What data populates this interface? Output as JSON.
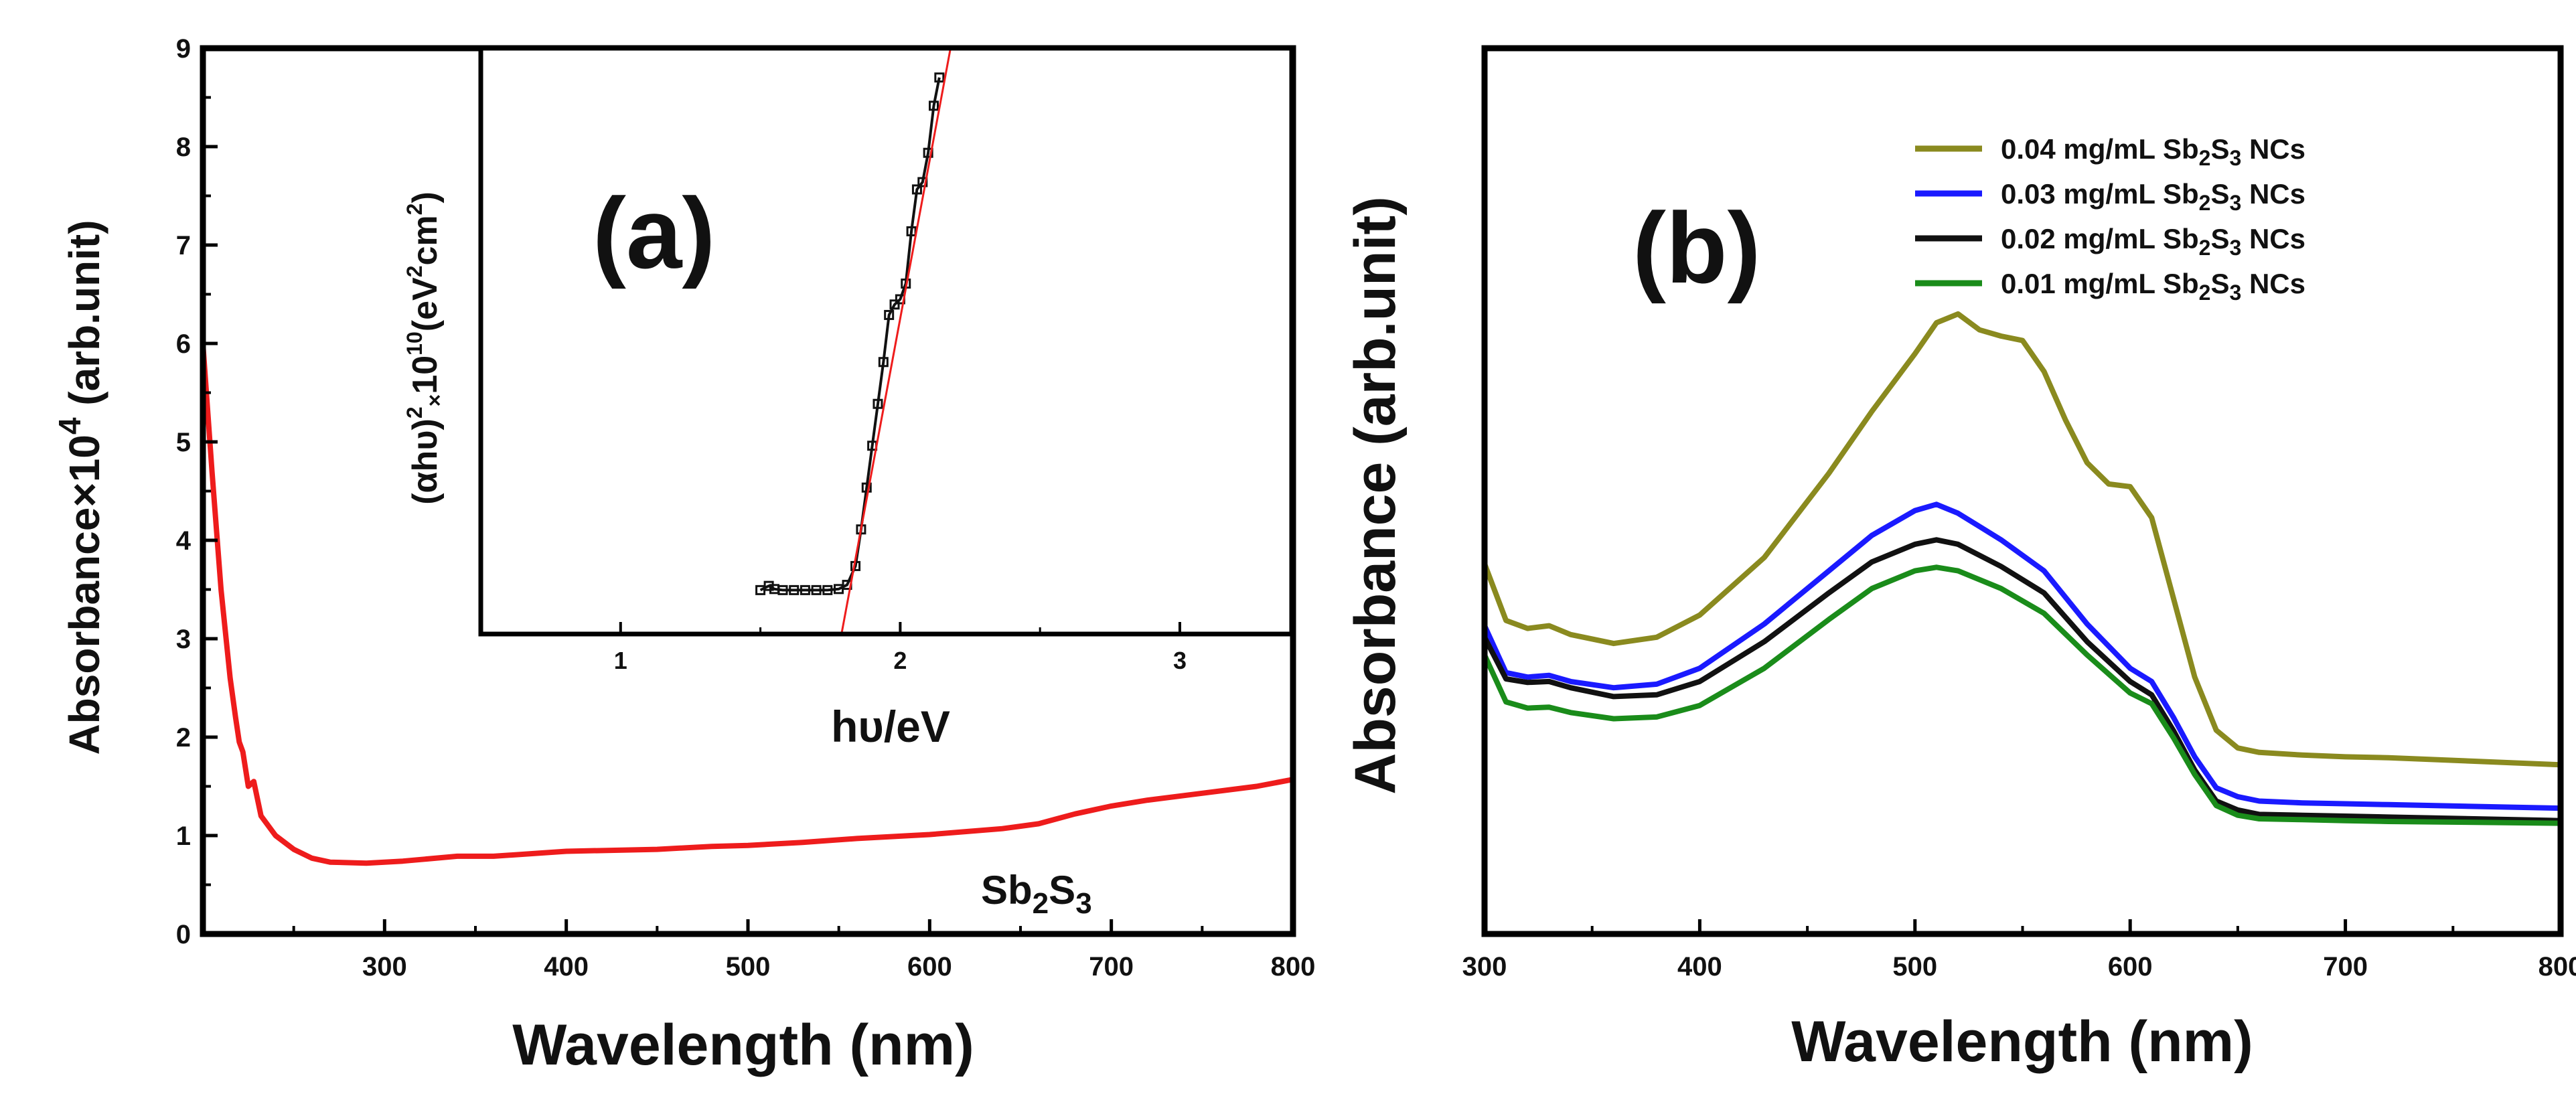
{
  "chart_data": [
    {
      "type": "line",
      "panel": "(a)",
      "title": "",
      "xlabel": "Wavelength (nm)",
      "ylabel": "Absorbance×10^4 (arb.unit)",
      "ylabel_main": "Absorbance×10",
      "ylabel_exp": "4",
      "ylabel_unit": " (arb.unit)",
      "xlim": [
        200,
        800
      ],
      "ylim": [
        0,
        9
      ],
      "xticks": [
        300,
        400,
        500,
        600,
        700,
        800
      ],
      "yticks": [
        0,
        1,
        2,
        3,
        4,
        5,
        6,
        7,
        8,
        9
      ],
      "annotation": {
        "main": "Sb",
        "s1": "2",
        "mid": "S",
        "s2": "3"
      },
      "series": [
        {
          "name": "Sb2S3",
          "color": "#ee1c1c",
          "x": [
            200,
            205,
            210,
            215,
            218,
            220,
            222,
            225,
            228,
            232,
            240,
            250,
            260,
            270,
            290,
            310,
            340,
            360,
            400,
            450,
            480,
            500,
            530,
            560,
            600,
            640,
            660,
            670,
            680,
            690,
            700,
            720,
            750,
            780,
            800
          ],
          "y": [
            6.0,
            4.7,
            3.5,
            2.6,
            2.2,
            1.95,
            1.85,
            1.5,
            1.55,
            1.2,
            1.0,
            0.86,
            0.77,
            0.73,
            0.72,
            0.74,
            0.79,
            0.79,
            0.84,
            0.86,
            0.89,
            0.9,
            0.93,
            0.97,
            1.01,
            1.07,
            1.12,
            1.17,
            1.22,
            1.26,
            1.3,
            1.36,
            1.43,
            1.5,
            1.57
          ]
        }
      ],
      "inset": {
        "xlabel": "hυ/eV",
        "ylabel": "(αhυ)²×10¹⁰(eV²cm²)",
        "ylabel_left": "(αhυ)",
        "ylabel_sup": "2",
        "ylabel_sub": "×",
        "ylabel_mid": "10",
        "ylabel_sup2": "10",
        "ylabel_unit": "(eV",
        "ylabel_sup3": "2",
        "ylabel_cm": "cm",
        "ylabel_sup4": "2",
        "ylabel_close": ")",
        "xlim": [
          0.5,
          3.4
        ],
        "ylim": [
          3.4,
          9.0
        ],
        "xticks": [
          1,
          2,
          3
        ],
        "data": {
          "name": "measured",
          "color": "#111111",
          "x": [
            1.5,
            1.53,
            1.55,
            1.58,
            1.62,
            1.66,
            1.7,
            1.74,
            1.78,
            1.81,
            1.84,
            1.86,
            1.88,
            1.9,
            1.92,
            1.94,
            1.96,
            1.98,
            2.0,
            2.02,
            2.04,
            2.06,
            2.08,
            2.1,
            2.12,
            2.14
          ],
          "y": [
            3.82,
            3.86,
            3.83,
            3.82,
            3.82,
            3.82,
            3.82,
            3.82,
            3.83,
            3.87,
            4.05,
            4.4,
            4.8,
            5.2,
            5.6,
            6.0,
            6.45,
            6.55,
            6.6,
            6.75,
            7.25,
            7.65,
            7.72,
            8.0,
            8.45,
            8.72
          ]
        },
        "fit": {
          "name": "linear fit",
          "color": "#ee1c1c",
          "x": [
            1.79,
            2.18
          ],
          "y": [
            3.4,
            9.0
          ]
        }
      }
    },
    {
      "type": "line",
      "panel": "(b)",
      "title": "",
      "xlabel": "Wavelength (nm)",
      "ylabel": "Absorbance (arb.unit)",
      "xlim": [
        300,
        800
      ],
      "ylim": [
        0,
        1
      ],
      "xticks": [
        300,
        400,
        500,
        600,
        700,
        800
      ],
      "legend": "top-right",
      "series": [
        {
          "name": "0.04 mg/mL Sb2S3 NCs",
          "color": "#8a8a1f",
          "label": {
            "pre": "0.04 mg/mL Sb",
            "s1": "2",
            "mid": "S",
            "s2": "3",
            "post": " NCs"
          },
          "x": [
            300,
            310,
            320,
            330,
            340,
            360,
            380,
            400,
            430,
            460,
            480,
            500,
            510,
            520,
            530,
            540,
            550,
            560,
            570,
            580,
            590,
            600,
            610,
            620,
            630,
            640,
            650,
            660,
            680,
            700,
            720,
            760,
            800
          ],
          "y": [
            0.418,
            0.354,
            0.345,
            0.348,
            0.338,
            0.328,
            0.335,
            0.36,
            0.425,
            0.52,
            0.59,
            0.655,
            0.69,
            0.7,
            0.682,
            0.675,
            0.67,
            0.635,
            0.58,
            0.532,
            0.508,
            0.505,
            0.47,
            0.38,
            0.29,
            0.23,
            0.21,
            0.205,
            0.202,
            0.2,
            0.199,
            0.195,
            0.191
          ]
        },
        {
          "name": "0.03 mg/mL Sb2S3 NCs",
          "color": "#1a1aff",
          "label": {
            "pre": "0.03 mg/mL Sb",
            "s1": "2",
            "mid": "S",
            "s2": "3",
            "post": " NCs"
          },
          "x": [
            300,
            310,
            320,
            330,
            340,
            360,
            380,
            400,
            430,
            460,
            480,
            500,
            510,
            520,
            530,
            540,
            560,
            580,
            600,
            610,
            620,
            630,
            640,
            650,
            660,
            680,
            700,
            720,
            760,
            800
          ],
          "y": [
            0.348,
            0.295,
            0.29,
            0.292,
            0.285,
            0.278,
            0.282,
            0.3,
            0.35,
            0.41,
            0.45,
            0.478,
            0.485,
            0.475,
            0.46,
            0.445,
            0.41,
            0.35,
            0.3,
            0.285,
            0.245,
            0.2,
            0.165,
            0.155,
            0.15,
            0.148,
            0.147,
            0.146,
            0.144,
            0.142
          ]
        },
        {
          "name": "0.02 mg/mL Sb2S3 NCs",
          "color": "#111111",
          "label": {
            "pre": "0.02 mg/mL Sb",
            "s1": "2",
            "mid": "S",
            "s2": "3",
            "post": " NCs"
          },
          "x": [
            300,
            310,
            320,
            330,
            340,
            360,
            380,
            400,
            430,
            460,
            480,
            500,
            510,
            520,
            540,
            560,
            580,
            600,
            610,
            620,
            630,
            640,
            650,
            660,
            680,
            700,
            720,
            760,
            800
          ],
          "y": [
            0.335,
            0.288,
            0.284,
            0.285,
            0.278,
            0.268,
            0.27,
            0.285,
            0.33,
            0.385,
            0.42,
            0.44,
            0.445,
            0.44,
            0.415,
            0.385,
            0.33,
            0.285,
            0.27,
            0.23,
            0.185,
            0.15,
            0.14,
            0.135,
            0.134,
            0.133,
            0.132,
            0.13,
            0.128
          ]
        },
        {
          "name": "0.01 mg/mL Sb2S3 NCs",
          "color": "#1a8c1a",
          "label": {
            "pre": "0.01 mg/mL Sb",
            "s1": "2",
            "mid": "S",
            "s2": "3",
            "post": " NCs"
          },
          "x": [
            300,
            310,
            320,
            330,
            340,
            360,
            380,
            400,
            430,
            460,
            480,
            500,
            510,
            520,
            540,
            560,
            580,
            600,
            610,
            620,
            630,
            640,
            650,
            660,
            680,
            700,
            720,
            760,
            800
          ],
          "y": [
            0.315,
            0.262,
            0.255,
            0.256,
            0.25,
            0.243,
            0.245,
            0.258,
            0.3,
            0.355,
            0.39,
            0.41,
            0.414,
            0.41,
            0.39,
            0.362,
            0.315,
            0.272,
            0.26,
            0.222,
            0.18,
            0.145,
            0.134,
            0.13,
            0.129,
            0.128,
            0.127,
            0.126,
            0.125
          ]
        }
      ]
    }
  ]
}
